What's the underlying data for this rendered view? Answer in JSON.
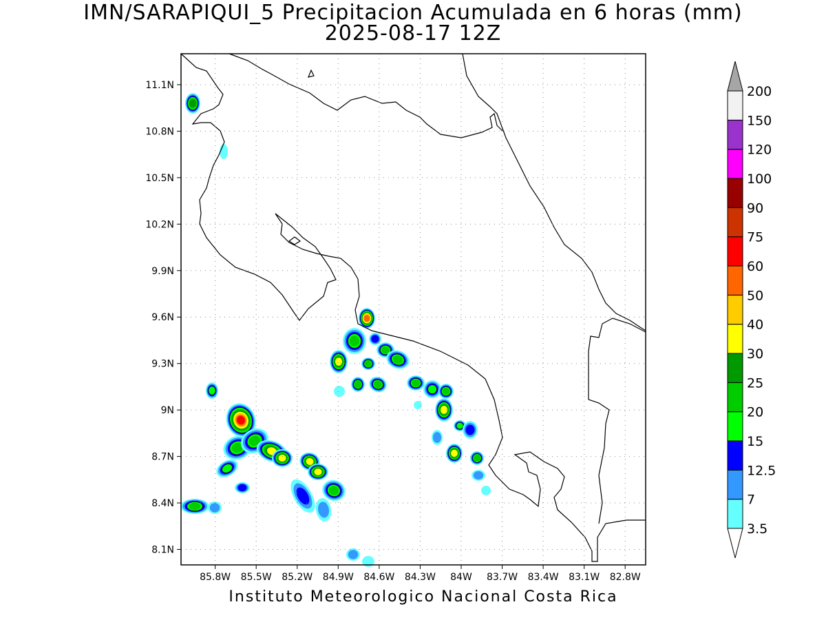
{
  "title": {
    "line1": "IMN/SARAPIQUI_5 Precipitacion Acumulada en 6 horas (mm)",
    "line2": "2025-08-17 12Z"
  },
  "map": {
    "lon_range": [
      -86.05,
      -82.65
    ],
    "lat_range": [
      8.0,
      11.3
    ],
    "lat_ticks": [
      "11.1N",
      "10.8N",
      "10.5N",
      "10.2N",
      "9.9N",
      "9.6N",
      "9.3N",
      "9N",
      "8.7N",
      "8.4N",
      "8.1N"
    ],
    "lat_values": [
      11.1,
      10.8,
      10.5,
      10.2,
      9.9,
      9.6,
      9.3,
      9.0,
      8.7,
      8.4,
      8.1
    ],
    "lon_ticks": [
      "85.8W",
      "85.5W",
      "85.2W",
      "84.9W",
      "84.6W",
      "84.3W",
      "84W",
      "83.7W",
      "83.4W",
      "83.1W",
      "82.8W"
    ],
    "lon_values": [
      -85.8,
      -85.5,
      -85.2,
      -84.9,
      -84.6,
      -84.3,
      -84.0,
      -83.7,
      -83.4,
      -83.1,
      -82.8
    ],
    "grid": "dotted"
  },
  "colorbar": {
    "unit": "mm",
    "levels": [
      "3.5",
      "7",
      "12.5",
      "15",
      "20",
      "25",
      "30",
      "40",
      "50",
      "60",
      "75",
      "90",
      "100",
      "120",
      "150",
      "200"
    ],
    "colors": [
      "#66ffff",
      "#3399ff",
      "#0000ff",
      "#00ff00",
      "#00cc00",
      "#009900",
      "#ffff00",
      "#ffcc00",
      "#ff6600",
      "#ff0000",
      "#cc3300",
      "#990000",
      "#ff00ff",
      "#9933cc",
      "#f2f2f2"
    ],
    "over_color": "#a6a6a6",
    "under_color": "#ffffff"
  },
  "credit": "Instituto Meteorologico Nacional Costa Rica"
}
